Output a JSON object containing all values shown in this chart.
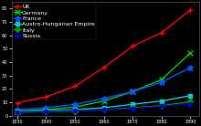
{
  "title": "",
  "background_color": "#000000",
  "x_values": [
    1830,
    1840,
    1850,
    1860,
    1870,
    1880,
    1890
  ],
  "series": [
    {
      "name": "UK",
      "color": "#ff0000",
      "marker": "+",
      "markersize": 5,
      "linewidth": 1.0,
      "values": [
        9.5,
        14.0,
        22.0,
        36.0,
        52.0,
        62.0,
        79.0
      ]
    },
    {
      "name": "Germany",
      "color": "#00cc00",
      "marker": "x",
      "markersize": 4,
      "linewidth": 1.0,
      "values": [
        3.5,
        4.5,
        6.5,
        11.0,
        18.0,
        27.0,
        47.0
      ]
    },
    {
      "name": "France",
      "color": "#0055ff",
      "marker": "*",
      "markersize": 5,
      "linewidth": 1.0,
      "values": [
        4.5,
        6.0,
        8.5,
        13.0,
        18.0,
        25.0,
        36.0
      ]
    },
    {
      "name": "Austro-Hungarian Empire",
      "color": "#00cccc",
      "marker": "s",
      "markersize": 3,
      "linewidth": 1.0,
      "values": [
        3.2,
        3.8,
        4.5,
        6.0,
        8.5,
        11.0,
        15.0
      ]
    },
    {
      "name": "Italy",
      "color": "#009900",
      "marker": "D",
      "markersize": 3,
      "linewidth": 1.0,
      "values": [
        2.5,
        3.0,
        3.5,
        4.5,
        6.0,
        7.5,
        10.5
      ]
    },
    {
      "name": "Russia",
      "color": "#0000cc",
      "marker": "o",
      "markersize": 3,
      "linewidth": 1.0,
      "values": [
        2.8,
        3.2,
        3.8,
        4.5,
        5.5,
        7.0,
        9.0
      ]
    }
  ],
  "xlim": [
    1828,
    1893
  ],
  "ylim": [
    0,
    85
  ],
  "legend_loc": "upper left",
  "legend_fontsize": 4.5,
  "tick_color": "#ffffff",
  "axis_color": "#555555",
  "grid": false
}
